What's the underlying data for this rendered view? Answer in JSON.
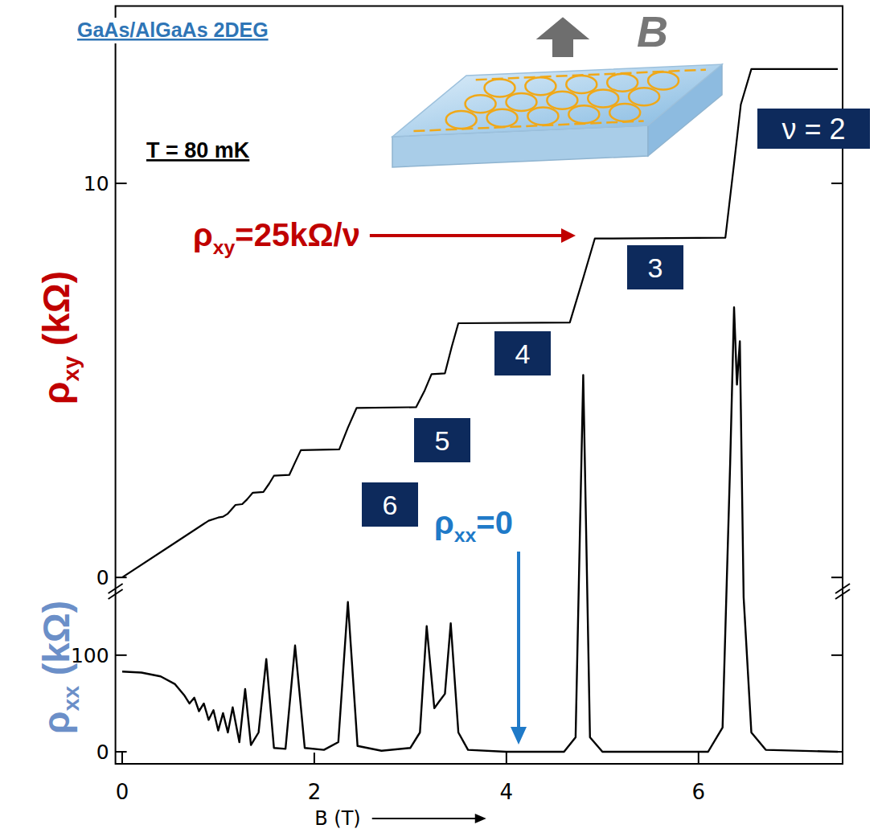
{
  "chart_data": {
    "type": "line",
    "x_label": "B (T)",
    "y_label": "ρxy (kΩ)",
    "y2_label": "ρxx (kΩ)",
    "xlim": [
      -0.07,
      7.5
    ],
    "xticks": [
      0,
      2,
      4,
      6
    ],
    "ylim": [
      -4.73,
      14.5
    ],
    "yticks": [
      0,
      10
    ],
    "y2lim": [
      -12.5,
      772
    ],
    "y2ticks": [
      0,
      100
    ],
    "series": [
      {
        "color": "#000000",
        "x": [
          0,
          0.5,
          0.9,
          1.0,
          1.05,
          1.1,
          1.18,
          1.25,
          1.3,
          1.36,
          1.47,
          1.53,
          1.58,
          1.74,
          1.8,
          1.86,
          2.26,
          2.35,
          2.44,
          3.06,
          3.15,
          3.22,
          3.36,
          3.43,
          3.5,
          4.66,
          4.8,
          4.92,
          6.28,
          6.37,
          6.44,
          6.55,
          7.45
        ],
        "values": [
          0,
          0.8,
          1.44,
          1.52,
          1.54,
          1.62,
          1.84,
          1.86,
          1.98,
          2.15,
          2.17,
          2.38,
          2.58,
          2.6,
          2.92,
          3.23,
          3.25,
          3.8,
          4.3,
          4.32,
          4.75,
          5.16,
          5.18,
          5.85,
          6.45,
          6.47,
          7.6,
          8.6,
          8.62,
          10.5,
          12.0,
          12.9,
          12.9
        ]
      },
      {
        "color": "#000000",
        "axis": "y2",
        "x": [
          0,
          0.2,
          0.4,
          0.55,
          0.65,
          0.7,
          0.75,
          0.8,
          0.85,
          0.9,
          0.95,
          1.0,
          1.05,
          1.1,
          1.15,
          1.22,
          1.28,
          1.34,
          1.42,
          1.5,
          1.58,
          1.7,
          1.8,
          1.9,
          2.1,
          2.25,
          2.35,
          2.45,
          2.7,
          3.0,
          3.1,
          3.17,
          3.25,
          3.3,
          3.36,
          3.42,
          3.5,
          3.6,
          4.0,
          4.6,
          4.72,
          4.8,
          4.87,
          5.0,
          6.1,
          6.25,
          6.33,
          6.37,
          6.4,
          6.43,
          6.47,
          6.55,
          6.7,
          7.45
        ],
        "values": [
          83,
          82,
          78,
          70,
          58,
          50,
          56,
          42,
          50,
          33,
          43,
          22,
          40,
          20,
          46,
          10,
          65,
          7,
          20,
          96,
          4,
          3,
          110,
          4,
          2,
          10,
          155,
          6,
          1,
          4,
          20,
          130,
          45,
          52,
          60,
          133,
          20,
          2,
          0,
          0,
          15,
          390,
          15,
          0,
          0,
          25,
          300,
          460,
          380,
          425,
          160,
          20,
          2,
          0
        ]
      }
    ],
    "annotations": [
      "GaAs/AlGaAs 2DEG",
      "B",
      "T = 80 mK",
      "ρxy=25kΩ/ν",
      "ν = 2",
      "3",
      "4",
      "5",
      "6",
      "ρxx=0"
    ]
  }
}
